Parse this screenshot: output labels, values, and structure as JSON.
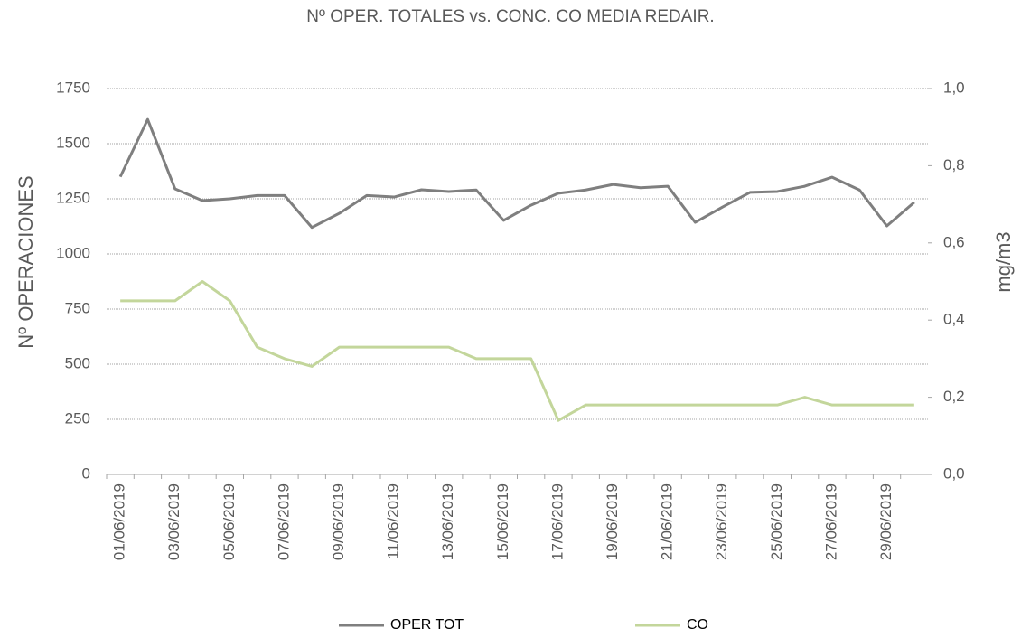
{
  "chart_data": {
    "type": "line",
    "title": "Nº OPER. TOTALES vs. CONC. CO MEDIA REDAIR.",
    "y_label": "Nº OPERACIONES",
    "y2_label": "mg/m3",
    "categories": [
      "01/06/2019",
      null,
      "03/06/2019",
      null,
      "05/06/2019",
      null,
      "07/06/2019",
      null,
      "09/06/2019",
      null,
      "11/06/2019",
      null,
      "13/06/2019",
      null,
      "15/06/2019",
      null,
      "17/06/2019",
      null,
      "19/06/2019",
      null,
      "21/06/2019",
      null,
      "23/06/2019",
      null,
      "25/06/2019",
      null,
      "27/06/2019",
      null,
      "29/06/2019",
      null
    ],
    "series": [
      {
        "name": "OPER TOT",
        "color": "#7f7f7f",
        "axis": "y",
        "values": [
          1350,
          1610,
          1295,
          1242,
          1250,
          1265,
          1265,
          1120,
          1184,
          1265,
          1258,
          1291,
          1283,
          1290,
          1152,
          1221,
          1275,
          1290,
          1315,
          1300,
          1307,
          1143,
          1213,
          1279,
          1283,
          1307,
          1348,
          1290,
          1127,
          1234
        ]
      },
      {
        "name": "CO",
        "color": "#c3d69b",
        "axis": "y2",
        "values": [
          0.45,
          0.45,
          0.45,
          0.5,
          0.45,
          0.33,
          0.3,
          0.28,
          0.33,
          0.33,
          0.33,
          0.33,
          0.33,
          0.3,
          0.3,
          0.3,
          0.14,
          0.18,
          0.18,
          0.18,
          0.18,
          0.18,
          0.18,
          0.18,
          0.18,
          0.2,
          0.18,
          0.18,
          0.18,
          0.18
        ]
      }
    ],
    "ylim": [
      0,
      1750
    ],
    "yticks": [
      0,
      250,
      500,
      750,
      1000,
      1250,
      1500,
      1750
    ],
    "y2lim": [
      0,
      1
    ],
    "y2ticks": [
      {
        "value": 0,
        "label": "0,0"
      },
      {
        "value": 0.2,
        "label": "0,2"
      },
      {
        "value": 0.4,
        "label": "0,4"
      },
      {
        "value": 0.6,
        "label": "0,6"
      },
      {
        "value": 0.8,
        "label": "0,8"
      },
      {
        "value": 1,
        "label": "1,0"
      }
    ],
    "grid": true,
    "legend": "bottom"
  }
}
